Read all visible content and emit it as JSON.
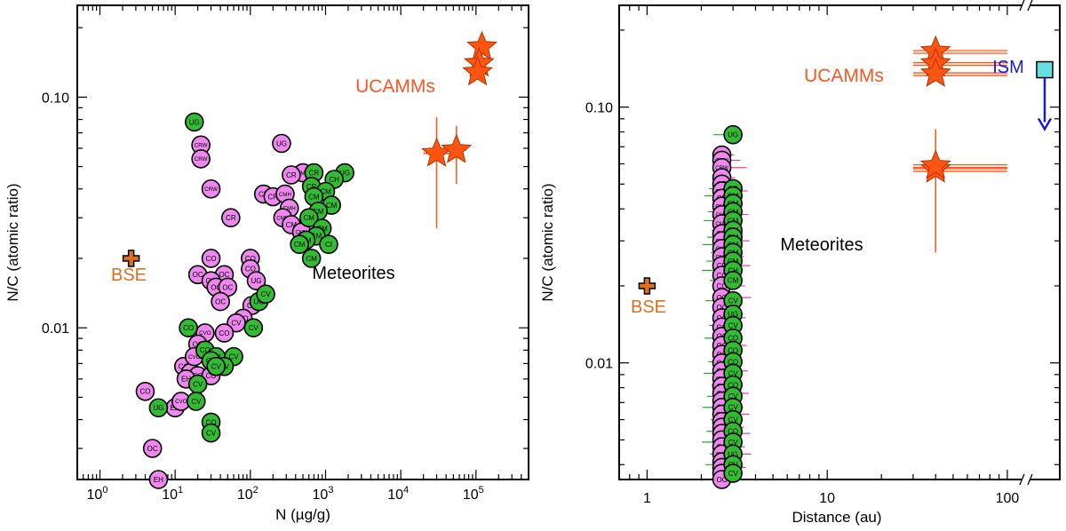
{
  "colors": {
    "carbonaceous": "#ee88ee",
    "ordinary": "#33bb33",
    "ucamm": "#ff5511",
    "ucamm_label": "#ff5522",
    "bse": "#dd6f22",
    "ism": "#1b1bd6",
    "ism_box": "#66e0e0",
    "errbar_pink": "#e0449a",
    "errbar_green": "#22aa22"
  },
  "chart_data": [
    {
      "type": "scatter",
      "panel": "left",
      "xlabel": "N (µg/g)",
      "ylabel": "N/C (atomic ratio)",
      "xscale": "log",
      "yscale": "log",
      "xlim": [
        0.5,
        500000
      ],
      "ylim": [
        0.0022,
        0.25
      ],
      "x_tick_labels": [
        {
          "v": 1,
          "m": "10",
          "e": "0"
        },
        {
          "v": 10,
          "m": "10",
          "e": "1"
        },
        {
          "v": 100,
          "m": "10",
          "e": "2"
        },
        {
          "v": 1000,
          "m": "10",
          "e": "3"
        },
        {
          "v": 10000,
          "m": "10",
          "e": "4"
        },
        {
          "v": 100000,
          "m": "10",
          "e": "5"
        }
      ],
      "y_tick_labels": [
        {
          "v": 0.01,
          "t": "0.01"
        },
        {
          "v": 0.1,
          "t": "0.10"
        }
      ],
      "annotations": {
        "meteorites": "Meteorites",
        "ucamms": "UCAMMs",
        "bse": "BSE"
      },
      "bse": {
        "x": 2.6,
        "y": 0.02
      },
      "ucamms": [
        {
          "x": 120000,
          "y": 0.165
        },
        {
          "x": 110000,
          "y": 0.14
        },
        {
          "x": 105000,
          "y": 0.128
        },
        {
          "x": 30000,
          "y": 0.057,
          "yerr": [
            0.027,
            0.082
          ],
          "xerr": [
            20000,
            50000
          ]
        },
        {
          "x": 55000,
          "y": 0.059,
          "yerr": [
            0.042,
            0.075
          ],
          "xerr": [
            40000,
            75000
          ]
        }
      ],
      "meteorites": [
        {
          "x": 18,
          "y": 0.078,
          "l": "UG",
          "g": "o"
        },
        {
          "x": 22,
          "y": 0.062,
          "l": "CRW",
          "g": "c"
        },
        {
          "x": 22,
          "y": 0.054,
          "l": "CRW",
          "g": "c"
        },
        {
          "x": 30,
          "y": 0.04,
          "l": "CRW",
          "g": "c"
        },
        {
          "x": 260,
          "y": 0.063,
          "l": "UG",
          "g": "c"
        },
        {
          "x": 500,
          "y": 0.047,
          "l": "CMH",
          "g": "c"
        },
        {
          "x": 350,
          "y": 0.046,
          "l": "CR",
          "g": "c"
        },
        {
          "x": 150,
          "y": 0.038,
          "l": "CR",
          "g": "c"
        },
        {
          "x": 200,
          "y": 0.037,
          "l": "CR",
          "g": "c"
        },
        {
          "x": 55,
          "y": 0.03,
          "l": "CR",
          "g": "c"
        },
        {
          "x": 290,
          "y": 0.038,
          "l": "CMH",
          "g": "c"
        },
        {
          "x": 330,
          "y": 0.033,
          "l": "CMH",
          "g": "c"
        },
        {
          "x": 270,
          "y": 0.03,
          "l": "CMH",
          "g": "c"
        },
        {
          "x": 350,
          "y": 0.028,
          "l": "CM",
          "g": "c"
        },
        {
          "x": 480,
          "y": 0.026,
          "l": "CMH",
          "g": "c"
        },
        {
          "x": 700,
          "y": 0.047,
          "l": "CR",
          "g": "o"
        },
        {
          "x": 1800,
          "y": 0.047,
          "l": "UG",
          "g": "o"
        },
        {
          "x": 1300,
          "y": 0.044,
          "l": "CH",
          "g": "o"
        },
        {
          "x": 650,
          "y": 0.041,
          "l": "CR",
          "g": "o"
        },
        {
          "x": 1000,
          "y": 0.039,
          "l": "CM",
          "g": "o"
        },
        {
          "x": 700,
          "y": 0.037,
          "l": "CM",
          "g": "o"
        },
        {
          "x": 1200,
          "y": 0.034,
          "l": "CM",
          "g": "o"
        },
        {
          "x": 800,
          "y": 0.032,
          "l": "CM",
          "g": "o"
        },
        {
          "x": 600,
          "y": 0.03,
          "l": "CM",
          "g": "o"
        },
        {
          "x": 900,
          "y": 0.027,
          "l": "CM",
          "g": "o"
        },
        {
          "x": 750,
          "y": 0.025,
          "l": "CM",
          "g": "o"
        },
        {
          "x": 550,
          "y": 0.024,
          "l": "CM",
          "g": "o"
        },
        {
          "x": 450,
          "y": 0.023,
          "l": "CM",
          "g": "o"
        },
        {
          "x": 1100,
          "y": 0.023,
          "l": "CI",
          "g": "o"
        },
        {
          "x": 650,
          "y": 0.02,
          "l": "CM",
          "g": "o"
        },
        {
          "x": 30,
          "y": 0.02,
          "l": "CO",
          "g": "c"
        },
        {
          "x": 100,
          "y": 0.02,
          "l": "CO",
          "g": "c"
        },
        {
          "x": 100,
          "y": 0.018,
          "l": "CO",
          "g": "c"
        },
        {
          "x": 20,
          "y": 0.017,
          "l": "OC",
          "g": "c"
        },
        {
          "x": 45,
          "y": 0.017,
          "l": "OC",
          "g": "c"
        },
        {
          "x": 30,
          "y": 0.016,
          "l": "OC",
          "g": "c"
        },
        {
          "x": 35,
          "y": 0.015,
          "l": "OC",
          "g": "c"
        },
        {
          "x": 50,
          "y": 0.015,
          "l": "OC",
          "g": "c"
        },
        {
          "x": 40,
          "y": 0.013,
          "l": "OC",
          "g": "c"
        },
        {
          "x": 120,
          "y": 0.016,
          "l": "UG",
          "g": "c"
        },
        {
          "x": 105,
          "y": 0.0125,
          "l": "CV",
          "g": "c"
        },
        {
          "x": 80,
          "y": 0.011,
          "l": "CO",
          "g": "c"
        },
        {
          "x": 65,
          "y": 0.0105,
          "l": "CV",
          "g": "c"
        },
        {
          "x": 45,
          "y": 0.0095,
          "l": "CO",
          "g": "c"
        },
        {
          "x": 25,
          "y": 0.0095,
          "l": "CVO",
          "g": "c"
        },
        {
          "x": 20,
          "y": 0.0085,
          "l": "OC",
          "g": "c"
        },
        {
          "x": 13,
          "y": 0.0068,
          "l": "CO",
          "g": "c"
        },
        {
          "x": 16,
          "y": 0.0064,
          "l": "CO",
          "g": "c"
        },
        {
          "x": 20,
          "y": 0.0062,
          "l": "CO",
          "g": "c"
        },
        {
          "x": 30,
          "y": 0.0062,
          "l": "CO",
          "g": "c"
        },
        {
          "x": 14,
          "y": 0.006,
          "l": "EH",
          "g": "c"
        },
        {
          "x": 18,
          "y": 0.0075,
          "l": "CVO",
          "g": "c"
        },
        {
          "x": 4,
          "y": 0.0053,
          "l": "CO",
          "g": "c"
        },
        {
          "x": 5,
          "y": 0.003,
          "l": "OC",
          "g": "c"
        },
        {
          "x": 10,
          "y": 0.0045,
          "l": "EH",
          "g": "c"
        },
        {
          "x": 6,
          "y": 0.0022,
          "l": "EH",
          "g": "c"
        },
        {
          "x": 12,
          "y": 0.0048,
          "l": "CVO",
          "g": "c"
        },
        {
          "x": 130,
          "y": 0.013,
          "l": "UG",
          "g": "o"
        },
        {
          "x": 160,
          "y": 0.014,
          "l": "CV",
          "g": "o"
        },
        {
          "x": 110,
          "y": 0.01,
          "l": "CV",
          "g": "o"
        },
        {
          "x": 15,
          "y": 0.01,
          "l": "CO",
          "g": "o"
        },
        {
          "x": 25,
          "y": 0.008,
          "l": "CO",
          "g": "o"
        },
        {
          "x": 35,
          "y": 0.0075,
          "l": "CV",
          "g": "o"
        },
        {
          "x": 60,
          "y": 0.0075,
          "l": "CV",
          "g": "o"
        },
        {
          "x": 30,
          "y": 0.0072,
          "l": "CV",
          "g": "o"
        },
        {
          "x": 45,
          "y": 0.0068,
          "l": "CV",
          "g": "o"
        },
        {
          "x": 35,
          "y": 0.0068,
          "l": "CV",
          "g": "o"
        },
        {
          "x": 20,
          "y": 0.0057,
          "l": "CV",
          "g": "o"
        },
        {
          "x": 19,
          "y": 0.0048,
          "l": "CV",
          "g": "o"
        },
        {
          "x": 6,
          "y": 0.0045,
          "l": "UG",
          "g": "o"
        },
        {
          "x": 30,
          "y": 0.0039,
          "l": "CO",
          "g": "o"
        },
        {
          "x": 30,
          "y": 0.0035,
          "l": "CV",
          "g": "o"
        }
      ]
    },
    {
      "type": "scatter",
      "panel": "right",
      "xlabel": "Distance (au)",
      "ylabel": "N/C (atomic ratio)",
      "xscale": "log",
      "yscale": "log",
      "xlim": [
        0.7,
        120
      ],
      "ylim": [
        0.0035,
        0.25
      ],
      "x_tick_labels": [
        {
          "v": 1,
          "t": "1"
        },
        {
          "v": 10,
          "t": "10"
        },
        {
          "v": 100,
          "t": "100"
        }
      ],
      "y_tick_labels": [
        {
          "v": 0.01,
          "t": "0.01"
        },
        {
          "v": 0.1,
          "t": "0.10"
        }
      ],
      "annotations": {
        "meteorites": "Meteorites",
        "ucamms": "UCAMMs",
        "bse": "BSE",
        "ism": "ISM"
      },
      "bse": {
        "x": 1,
        "y": 0.02
      },
      "ism": {
        "y": 0.14,
        "arrow_to": 0.082
      },
      "ucamms": [
        {
          "x": 40,
          "y": 0.165,
          "xerr": [
            30,
            100
          ]
        },
        {
          "x": 40,
          "y": 0.148,
          "xerr": [
            30,
            100
          ]
        },
        {
          "x": 40,
          "y": 0.135,
          "xerr": [
            30,
            100
          ]
        },
        {
          "x": 40,
          "y": 0.057,
          "yerr": [
            0.027,
            0.082
          ],
          "xerr": [
            30,
            100
          ]
        },
        {
          "x": 40,
          "y": 0.059,
          "xerr": [
            30,
            100
          ]
        }
      ],
      "meteorites_carbonaceous": {
        "x": 2.6,
        "labels": [
          "CRW",
          "CRW",
          "CRW",
          "CR",
          "CR",
          "CRW",
          "CR",
          "CMH",
          "CMH",
          "CMH",
          "CM",
          "CMH",
          "CMH",
          "CMH",
          "CR",
          "CO",
          "CO",
          "OC",
          "OC",
          "OC",
          "CO",
          "OC",
          "OC",
          "OC",
          "OC",
          "CO",
          "CVO",
          "OC",
          "OC",
          "CO",
          "CO",
          "CVO",
          "OC",
          "OC",
          "CO",
          "CO",
          "OC",
          "CVO",
          "CO",
          "EH",
          "EH",
          "OC"
        ],
        "y": [
          0.065,
          0.062,
          0.058,
          0.053,
          0.05,
          0.047,
          0.044,
          0.041,
          0.038,
          0.035,
          0.032,
          0.03,
          0.028,
          0.026,
          0.024,
          0.022,
          0.02,
          0.018,
          0.0165,
          0.015,
          0.0138,
          0.0127,
          0.0117,
          0.0108,
          0.01,
          0.0093,
          0.0087,
          0.0081,
          0.0076,
          0.0071,
          0.0067,
          0.0063,
          0.0059,
          0.0056,
          0.0053,
          0.005,
          0.0047,
          0.0044,
          0.0041,
          0.0039,
          0.0037,
          0.0035
        ]
      },
      "meteorites_ordinary": {
        "x": 3.0,
        "labels": [
          "UG",
          "CR",
          "CM",
          "CM",
          "CM",
          "CM",
          "CM",
          "CM",
          "CM",
          "CM",
          "CM",
          "CH",
          "CM",
          "CV",
          "UG",
          "CV",
          "CO",
          "CO",
          "CO",
          "CV",
          "CO",
          "CV",
          "CV",
          "CV",
          "CO",
          "CV",
          "UG",
          "CV",
          "CV"
        ],
        "y": [
          0.078,
          0.048,
          0.045,
          0.042,
          0.039,
          0.036,
          0.033,
          0.031,
          0.029,
          0.027,
          0.025,
          0.023,
          0.021,
          0.0175,
          0.0155,
          0.014,
          0.0125,
          0.0112,
          0.0101,
          0.0091,
          0.0082,
          0.0074,
          0.0067,
          0.006,
          0.0054,
          0.0049,
          0.0044,
          0.004,
          0.0037
        ]
      }
    }
  ]
}
